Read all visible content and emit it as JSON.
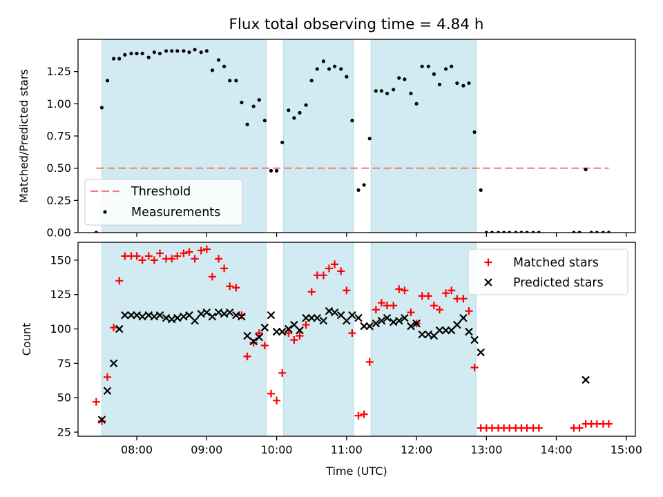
{
  "title": "Flux total observing time = 4.84 h",
  "colors": {
    "band": "#add8e6",
    "threshold": "#f08080",
    "measurement": "#000000",
    "matched": "#ff0000",
    "predicted": "#000000"
  },
  "chart_data": [
    {
      "type": "scatter",
      "panel": "top",
      "ylabel": "Matched/Predicted stars",
      "xlabel": "",
      "xlim": [
        7.16,
        15.13
      ],
      "ylim": [
        0.0,
        1.5
      ],
      "yticks": [
        0.0,
        0.25,
        0.5,
        0.75,
        1.0,
        1.25
      ],
      "ytick_labels": [
        "0.00",
        "0.25",
        "0.50",
        "0.75",
        "1.00",
        "1.25"
      ],
      "xticks": [
        8,
        9,
        10,
        11,
        12,
        13,
        14,
        15
      ],
      "bands": [
        [
          7.5,
          9.85
        ],
        [
          10.1,
          11.1
        ],
        [
          11.35,
          12.85
        ]
      ],
      "threshold": {
        "y": 0.5,
        "x": [
          7.42,
          14.75
        ]
      },
      "legend": {
        "position": "lower-left",
        "entries": [
          "Threshold",
          "Measurements"
        ]
      },
      "series": [
        {
          "name": "Measurements",
          "x": [
            7.42,
            7.5,
            7.58,
            7.67,
            7.75,
            7.83,
            7.92,
            8.0,
            8.08,
            8.17,
            8.25,
            8.33,
            8.42,
            8.5,
            8.58,
            8.67,
            8.75,
            8.83,
            8.92,
            9.0,
            9.08,
            9.17,
            9.25,
            9.33,
            9.42,
            9.5,
            9.58,
            9.67,
            9.75,
            9.83,
            9.92,
            10.0,
            10.08,
            10.17,
            10.25,
            10.33,
            10.42,
            10.5,
            10.58,
            10.67,
            10.75,
            10.83,
            10.92,
            11.0,
            11.08,
            11.17,
            11.25,
            11.33,
            11.42,
            11.5,
            11.58,
            11.67,
            11.75,
            11.83,
            11.92,
            12.0,
            12.08,
            12.17,
            12.25,
            12.33,
            12.42,
            12.5,
            12.58,
            12.67,
            12.75,
            12.83,
            12.92,
            13.0,
            13.08,
            13.17,
            13.25,
            13.33,
            13.42,
            13.5,
            13.58,
            13.67,
            13.75,
            14.25,
            14.33,
            14.42,
            14.5,
            14.58,
            14.67,
            14.75
          ],
          "y": [
            0.0,
            0.97,
            1.18,
            1.35,
            1.35,
            1.38,
            1.39,
            1.39,
            1.39,
            1.36,
            1.4,
            1.39,
            1.41,
            1.41,
            1.41,
            1.41,
            1.4,
            1.42,
            1.4,
            1.41,
            1.26,
            1.34,
            1.29,
            1.18,
            1.18,
            1.01,
            0.84,
            0.98,
            1.03,
            0.87,
            0.48,
            0.48,
            0.7,
            0.95,
            0.89,
            0.93,
            0.99,
            1.18,
            1.27,
            1.33,
            1.27,
            1.29,
            1.27,
            1.21,
            0.87,
            0.33,
            0.37,
            0.73,
            1.1,
            1.1,
            1.08,
            1.11,
            1.2,
            1.19,
            1.08,
            1.0,
            1.29,
            1.29,
            1.23,
            1.15,
            1.27,
            1.29,
            1.16,
            1.14,
            1.16,
            0.78,
            0.33,
            0.0,
            0.0,
            0.0,
            0.0,
            0.0,
            0.0,
            0.0,
            0.0,
            0.0,
            0.0,
            0.0,
            0.0,
            0.49,
            0.0,
            0.0,
            0.0,
            0.0
          ]
        }
      ]
    },
    {
      "type": "scatter",
      "panel": "bottom",
      "ylabel": "Count",
      "xlabel": "Time (UTC)",
      "xlim": [
        7.16,
        15.13
      ],
      "ylim": [
        22,
        163
      ],
      "yticks": [
        25,
        50,
        75,
        100,
        125,
        150
      ],
      "ytick_labels": [
        "25",
        "50",
        "75",
        "100",
        "125",
        "150"
      ],
      "xticks": [
        8,
        9,
        10,
        11,
        12,
        13,
        14,
        15
      ],
      "xtick_labels": [
        "08:00",
        "09:00",
        "10:00",
        "11:00",
        "12:00",
        "13:00",
        "14:00",
        "15:00"
      ],
      "bands": [
        [
          7.5,
          9.85
        ],
        [
          10.1,
          11.1
        ],
        [
          11.35,
          12.85
        ]
      ],
      "legend": {
        "position": "top-right",
        "entries": [
          "Matched stars",
          "Predicted stars"
        ]
      },
      "series": [
        {
          "name": "Matched stars",
          "marker": "plus",
          "x": [
            7.42,
            7.5,
            7.58,
            7.67,
            7.75,
            7.83,
            7.92,
            8.0,
            8.08,
            8.17,
            8.25,
            8.33,
            8.42,
            8.5,
            8.58,
            8.67,
            8.75,
            8.83,
            8.92,
            9.0,
            9.08,
            9.17,
            9.25,
            9.33,
            9.42,
            9.5,
            9.58,
            9.67,
            9.75,
            9.83,
            9.92,
            10.0,
            10.08,
            10.17,
            10.25,
            10.33,
            10.42,
            10.5,
            10.58,
            10.67,
            10.75,
            10.83,
            10.92,
            11.0,
            11.08,
            11.17,
            11.25,
            11.33,
            11.42,
            11.5,
            11.58,
            11.67,
            11.75,
            11.83,
            11.92,
            12.0,
            12.08,
            12.17,
            12.25,
            12.33,
            12.42,
            12.5,
            12.58,
            12.67,
            12.75,
            12.83,
            12.92,
            13.0,
            13.08,
            13.17,
            13.25,
            13.33,
            13.42,
            13.5,
            13.58,
            13.67,
            13.75,
            14.25,
            14.33,
            14.42,
            14.5,
            14.58,
            14.67,
            14.75
          ],
          "y": [
            47,
            33,
            65,
            101,
            135,
            153,
            153,
            153,
            150,
            153,
            150,
            155,
            151,
            151,
            153,
            155,
            156,
            151,
            157,
            158,
            138,
            151,
            144,
            131,
            130,
            110,
            80,
            90,
            97,
            88,
            53,
            48,
            68,
            97,
            92,
            95,
            103,
            127,
            139,
            139,
            144,
            147,
            142,
            128,
            97,
            37,
            38,
            76,
            114,
            119,
            117,
            117,
            129,
            128,
            112,
            104,
            124,
            124,
            117,
            114,
            126,
            128,
            122,
            122,
            113,
            72,
            28,
            28,
            28,
            28,
            28,
            28,
            28,
            28,
            28,
            28,
            28,
            28,
            28,
            31,
            31,
            31,
            31,
            31
          ]
        },
        {
          "name": "Predicted stars",
          "marker": "x",
          "x": [
            7.5,
            7.58,
            7.67,
            7.75,
            7.83,
            7.92,
            8.0,
            8.08,
            8.17,
            8.25,
            8.33,
            8.42,
            8.5,
            8.58,
            8.67,
            8.75,
            8.83,
            8.92,
            9.0,
            9.08,
            9.17,
            9.25,
            9.33,
            9.42,
            9.5,
            9.58,
            9.67,
            9.75,
            9.83,
            9.92,
            10.0,
            10.08,
            10.17,
            10.25,
            10.33,
            10.42,
            10.5,
            10.58,
            10.67,
            10.75,
            10.83,
            10.92,
            11.0,
            11.08,
            11.17,
            11.25,
            11.33,
            11.42,
            11.5,
            11.58,
            11.67,
            11.75,
            11.83,
            11.92,
            12.0,
            12.08,
            12.17,
            12.25,
            12.33,
            12.42,
            12.5,
            12.58,
            12.67,
            12.75,
            12.83,
            12.92,
            14.42
          ],
          "y": [
            34,
            55,
            75,
            100,
            110,
            110,
            110,
            109,
            110,
            109,
            110,
            108,
            107,
            108,
            109,
            110,
            106,
            111,
            112,
            109,
            112,
            111,
            112,
            110,
            109,
            95,
            91,
            94,
            101,
            110,
            98,
            98,
            100,
            103,
            99,
            108,
            108,
            108,
            106,
            113,
            112,
            110,
            106,
            110,
            108,
            102,
            102,
            104,
            106,
            108,
            105,
            106,
            108,
            102,
            104,
            96,
            96,
            95,
            99,
            99,
            99,
            103,
            108,
            98,
            92,
            83,
            63
          ]
        }
      ]
    }
  ]
}
